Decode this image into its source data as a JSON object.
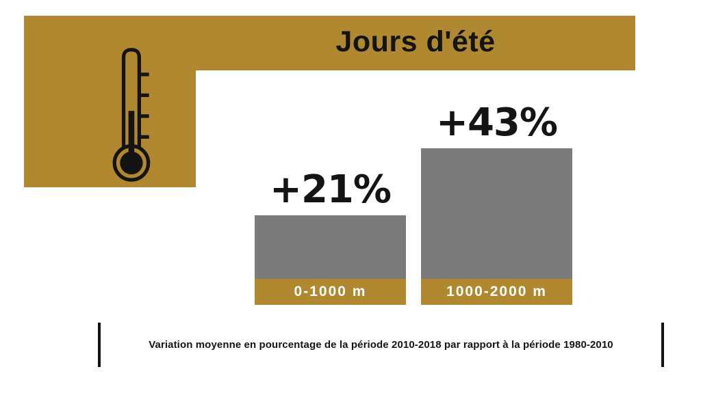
{
  "header": {
    "title": "Jours d'été",
    "icon": "thermometer-icon"
  },
  "chart_data": {
    "type": "bar",
    "title": "Jours d'été",
    "categories": [
      "0-1000 m",
      "1000-2000 m"
    ],
    "values": [
      21,
      43
    ],
    "value_labels": [
      "+21%",
      "+43%"
    ],
    "unit": "%",
    "ylim": [
      0,
      45
    ],
    "grid": false,
    "legend": false,
    "bar_color": "#7B7B7B",
    "bar_base_color": "#B0882F",
    "accent_color": "#B0882F",
    "note": "Variation moyenne en pourcentage de la période 2010-2018 par rapport à la période 1980-2010"
  },
  "footer": {
    "caption": "Variation moyenne en pourcentage de la période 2010-2018 par rapport à la période 1980-2010"
  },
  "colors": {
    "accent_gold": "#B0882F",
    "bar_gray": "#7B7B7B",
    "text_black": "#141414",
    "label_white": "#FFFFFF",
    "background": "#FFFFFF"
  }
}
